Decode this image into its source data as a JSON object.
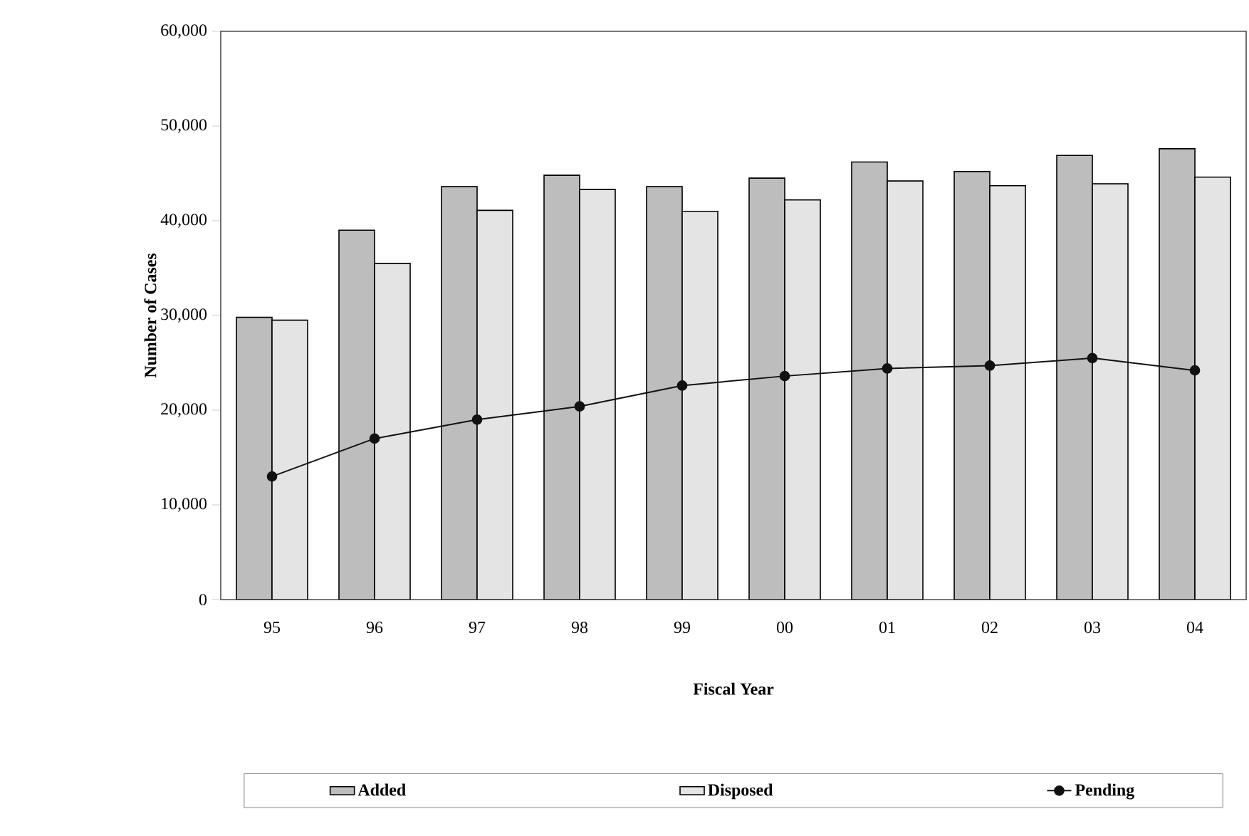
{
  "chart_data": {
    "type": "bar",
    "xlabel": "Fiscal Year",
    "ylabel": "Number of Cases",
    "categories": [
      "95",
      "96",
      "97",
      "98",
      "99",
      "00",
      "01",
      "02",
      "03",
      "04"
    ],
    "series": [
      {
        "name": "Added",
        "color": "#bdbdbd",
        "values": [
          29800,
          39000,
          43600,
          44800,
          43600,
          44500,
          46200,
          45200,
          46900,
          47600
        ]
      },
      {
        "name": "Disposed",
        "color": "#e4e4e4",
        "values": [
          29500,
          35500,
          41100,
          43300,
          41000,
          42200,
          44200,
          43700,
          43900,
          44600
        ]
      },
      {
        "name": "Pending",
        "type": "line",
        "color": "#111111",
        "marker": "circle",
        "values": [
          13000,
          17000,
          19000,
          20400,
          22600,
          23600,
          24400,
          24700,
          25500,
          24200
        ]
      }
    ],
    "ylim": [
      0,
      60000
    ],
    "yticks": [
      0,
      {
        "value": 10000,
        "label": "10,000"
      },
      {
        "value": 20000,
        "label": "20,000"
      },
      {
        "value": 30000,
        "label": "30,000"
      },
      {
        "value": 40000,
        "label": "40,000"
      },
      {
        "value": 50000,
        "label": "50,000"
      },
      {
        "value": 60000,
        "label": "60,000"
      }
    ],
    "grid": false,
    "legend": "bottom"
  }
}
